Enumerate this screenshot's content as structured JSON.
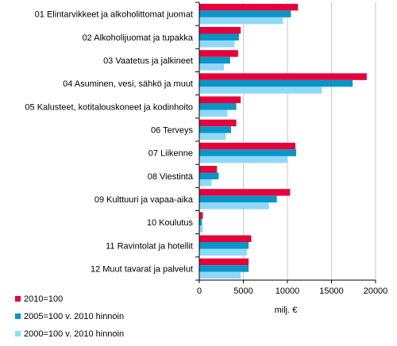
{
  "chart_data": {
    "type": "bar",
    "orientation": "horizontal",
    "categories": [
      "01 Elintarvikkeet ja alkoholittomat juomat",
      "02 Alkoholijuomat ja tupakka",
      "03 Vaatetus ja jalkineet",
      "04 Asuminen, vesi, sähkö ja muut",
      "05 Kalusteet, kotitalouskoneet ja kodinhoito",
      "06 Terveys",
      "07 Liikenne",
      "08 Viestintä",
      "09 Kulttuuri ja vapaa-aika",
      "10 Koulutus",
      "11 Ravintolat ja hotellit",
      "12 Muut tavarat ja palvelut"
    ],
    "series": [
      {
        "name": "2010=100",
        "color": "#e5003a",
        "values": [
          11200,
          4700,
          4400,
          19000,
          4700,
          4200,
          10900,
          2000,
          10300,
          400,
          5900,
          5600
        ]
      },
      {
        "name": "2005=100 v. 2010 hinnoin",
        "color": "#0a95c9",
        "values": [
          10400,
          4500,
          3500,
          17400,
          4200,
          3600,
          11000,
          2200,
          8800,
          300,
          5600,
          5600
        ]
      },
      {
        "name": "2000=100 v. 2010 hinnoin",
        "color": "#8fd8f8",
        "values": [
          9500,
          4000,
          2800,
          13900,
          3200,
          3000,
          10000,
          1400,
          7900,
          400,
          5400,
          4700
        ]
      }
    ],
    "xlim": [
      0,
      20000
    ],
    "xticks": [
      0,
      5000,
      10000,
      15000,
      20000
    ],
    "xlabel": "milj. €",
    "grid": true,
    "legend_position": "bottom-left"
  }
}
